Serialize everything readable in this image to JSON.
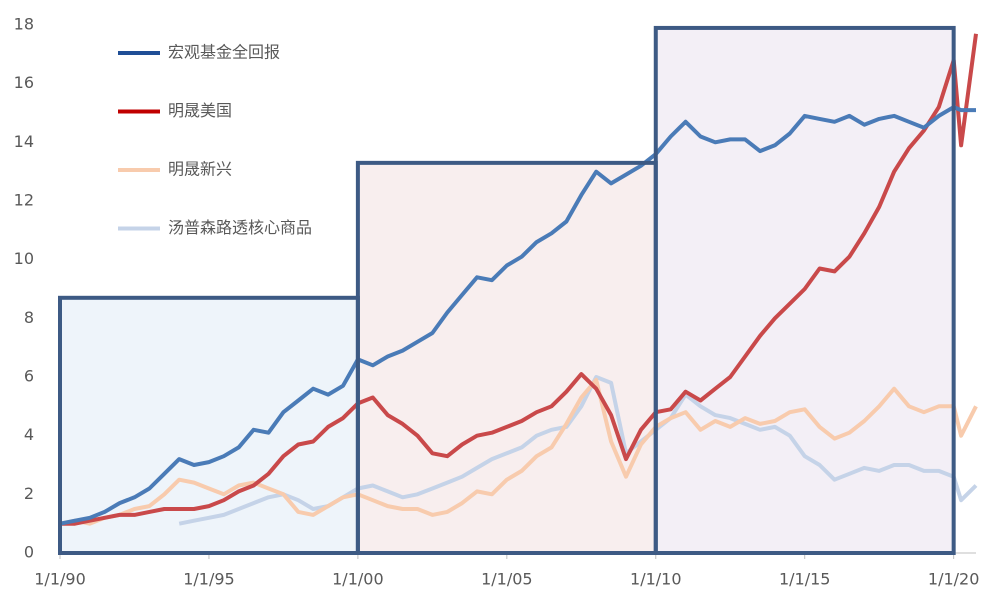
{
  "chart_data": {
    "type": "line",
    "x": [
      1990,
      1990.5,
      1991,
      1991.5,
      1992,
      1992.5,
      1993,
      1993.5,
      1994,
      1994.5,
      1995,
      1995.5,
      1996,
      1996.5,
      1997,
      1997.5,
      1998,
      1998.5,
      1999,
      1999.5,
      2000,
      2000.5,
      2001,
      2001.5,
      2002,
      2002.5,
      2003,
      2003.5,
      2004,
      2004.5,
      2005,
      2005.5,
      2006,
      2006.5,
      2007,
      2007.5,
      2008,
      2008.5,
      2009,
      2009.5,
      2010,
      2010.5,
      2011,
      2011.5,
      2012,
      2012.5,
      2013,
      2013.5,
      2014,
      2014.5,
      2015,
      2015.5,
      2016,
      2016.5,
      2017,
      2017.5,
      2018,
      2018.5,
      2019,
      2019.5,
      2020,
      2020.25,
      2020.75
    ],
    "series": [
      {
        "name": "宏观基金全回报",
        "color": "#4a7bb7",
        "legend_color": "#1f4e96",
        "values": [
          1.0,
          1.1,
          1.2,
          1.4,
          1.7,
          1.9,
          2.2,
          2.7,
          3.2,
          3.0,
          3.1,
          3.3,
          3.6,
          4.2,
          4.1,
          4.8,
          5.2,
          5.6,
          5.4,
          5.7,
          6.6,
          6.4,
          6.7,
          6.9,
          7.2,
          7.5,
          8.2,
          8.8,
          9.4,
          9.3,
          9.8,
          10.1,
          10.6,
          10.9,
          11.3,
          12.2,
          13.0,
          12.6,
          12.9,
          13.2,
          13.6,
          14.2,
          14.7,
          14.2,
          14.0,
          14.1,
          14.1,
          13.7,
          13.9,
          14.3,
          14.9,
          14.8,
          14.7,
          14.9,
          14.6,
          14.8,
          14.9,
          14.7,
          14.5,
          14.9,
          15.2,
          15.1,
          15.1
        ]
      },
      {
        "name": "明晟美国",
        "color": "#c9494a",
        "legend_color": "#c00000",
        "values": [
          1.0,
          1.0,
          1.1,
          1.2,
          1.3,
          1.3,
          1.4,
          1.5,
          1.5,
          1.5,
          1.6,
          1.8,
          2.1,
          2.3,
          2.7,
          3.3,
          3.7,
          3.8,
          4.3,
          4.6,
          5.1,
          5.3,
          4.7,
          4.4,
          4.0,
          3.4,
          3.3,
          3.7,
          4.0,
          4.1,
          4.3,
          4.5,
          4.8,
          5.0,
          5.5,
          6.1,
          5.6,
          4.7,
          3.2,
          4.2,
          4.8,
          4.9,
          5.5,
          5.2,
          5.6,
          6.0,
          6.7,
          7.4,
          8.0,
          8.5,
          9.0,
          9.7,
          9.6,
          10.1,
          10.9,
          11.8,
          13.0,
          13.8,
          14.4,
          15.2,
          16.8,
          13.9,
          17.7
        ]
      },
      {
        "name": "明晟新兴",
        "color": "#f8cbad",
        "legend_color": "#f8cbad",
        "values": [
          1.0,
          1.1,
          1.0,
          1.2,
          1.3,
          1.5,
          1.6,
          2.0,
          2.5,
          2.4,
          2.2,
          2.0,
          2.3,
          2.4,
          2.2,
          2.0,
          1.4,
          1.3,
          1.6,
          1.9,
          2.0,
          1.8,
          1.6,
          1.5,
          1.5,
          1.3,
          1.4,
          1.7,
          2.1,
          2.0,
          2.5,
          2.8,
          3.3,
          3.6,
          4.4,
          5.3,
          5.9,
          3.8,
          2.6,
          3.7,
          4.3,
          4.6,
          4.8,
          4.2,
          4.5,
          4.3,
          4.6,
          4.4,
          4.5,
          4.8,
          4.9,
          4.3,
          3.9,
          4.1,
          4.5,
          5.0,
          5.6,
          5.0,
          4.8,
          5.0,
          5.0,
          4.0,
          5.0
        ]
      },
      {
        "name": "汤普森路透核心商品",
        "color": "#c5d3e8",
        "legend_color": "#c5d3e8",
        "values": [
          null,
          null,
          null,
          null,
          null,
          null,
          null,
          null,
          1.0,
          1.1,
          1.2,
          1.3,
          1.5,
          1.7,
          1.9,
          2.0,
          1.8,
          1.5,
          1.6,
          1.9,
          2.2,
          2.3,
          2.1,
          1.9,
          2.0,
          2.2,
          2.4,
          2.6,
          2.9,
          3.2,
          3.4,
          3.6,
          4.0,
          4.2,
          4.3,
          5.0,
          6.0,
          5.8,
          3.4,
          3.8,
          4.2,
          4.6,
          5.4,
          5.0,
          4.7,
          4.6,
          4.4,
          4.2,
          4.3,
          4.0,
          3.3,
          3.0,
          2.5,
          2.7,
          2.9,
          2.8,
          3.0,
          3.0,
          2.8,
          2.8,
          2.6,
          1.8,
          2.3
        ]
      }
    ],
    "regions": [
      {
        "x": [
          1990,
          2000
        ],
        "top": 8.7,
        "fill": "#eef4fa"
      },
      {
        "x": [
          2000,
          2010
        ],
        "top": 13.3,
        "fill": "#f8eeee"
      },
      {
        "x": [
          2010,
          2020
        ],
        "top": 17.9,
        "fill": "#f3eff6"
      }
    ],
    "region_border": "#3d5a84",
    "xlim": [
      1990,
      2020.75
    ],
    "ylim": [
      0,
      18
    ],
    "xticks": [
      {
        "value": 1990,
        "label": "1/1/90"
      },
      {
        "value": 1995,
        "label": "1/1/95"
      },
      {
        "value": 2000,
        "label": "1/1/00"
      },
      {
        "value": 2005,
        "label": "1/1/05"
      },
      {
        "value": 2010,
        "label": "1/1/10"
      },
      {
        "value": 2015,
        "label": "1/1/15"
      },
      {
        "value": 2020,
        "label": "1/1/20"
      }
    ],
    "yticks": [
      0,
      2,
      4,
      6,
      8,
      10,
      12,
      14,
      16,
      18
    ],
    "legend": "upper left"
  }
}
